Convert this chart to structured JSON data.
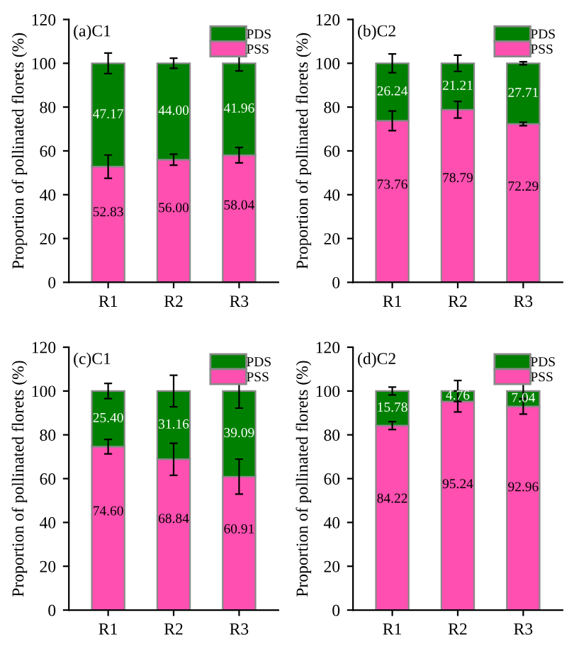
{
  "chart_data": [
    {
      "type": "bar",
      "title": "(a)C1",
      "ylabel": "Proportion of pollinated florets (%)",
      "categories": [
        "R1",
        "R2",
        "R3"
      ],
      "stacked": true,
      "legend": "top right",
      "ylim": [
        0,
        120
      ],
      "yticks": [
        0,
        20,
        40,
        60,
        80,
        100,
        120
      ],
      "series": [
        {
          "name": "PSS",
          "color": "#ff4fb0",
          "values": [
            52.83,
            56.0,
            58.04
          ],
          "value_labels": [
            "52.83",
            "56.00",
            "58.04"
          ],
          "errors": [
            5.3,
            2.5,
            3.5
          ]
        },
        {
          "name": "PDS",
          "color": "#008000",
          "values": [
            47.17,
            44.0,
            41.96
          ],
          "value_labels": [
            "47.17",
            "44.00",
            "41.96"
          ],
          "errors": [
            4.7,
            2.3,
            3.5
          ]
        }
      ]
    },
    {
      "type": "bar",
      "title": "(b)C2",
      "ylabel": "Proportion of pollinated florets (%)",
      "categories": [
        "R1",
        "R2",
        "R3"
      ],
      "stacked": true,
      "legend": "top right",
      "ylim": [
        0,
        120
      ],
      "yticks": [
        0,
        20,
        40,
        60,
        80,
        100,
        120
      ],
      "series": [
        {
          "name": "PSS",
          "color": "#ff4fb0",
          "values": [
            73.76,
            78.79,
            72.29
          ],
          "value_labels": [
            "73.76",
            "78.79",
            "72.29"
          ],
          "errors": [
            4.5,
            3.8,
            0.8
          ]
        },
        {
          "name": "PDS",
          "color": "#008000",
          "values": [
            26.24,
            21.21,
            27.71
          ],
          "value_labels": [
            "26.24",
            "21.21",
            "27.71"
          ],
          "errors": [
            4.3,
            3.7,
            0.7
          ]
        }
      ]
    },
    {
      "type": "bar",
      "title": "(c)C1",
      "ylabel": "Proportion of pollinated florets (%)",
      "categories": [
        "R1",
        "R2",
        "R3"
      ],
      "stacked": true,
      "legend": "top right",
      "ylim": [
        0,
        120
      ],
      "yticks": [
        0,
        20,
        40,
        60,
        80,
        100,
        120
      ],
      "series": [
        {
          "name": "PSS",
          "color": "#ff4fb0",
          "values": [
            74.6,
            68.84,
            60.91
          ],
          "value_labels": [
            "74.60",
            "68.84",
            "60.91"
          ],
          "errors": [
            3.3,
            7.3,
            8.0
          ]
        },
        {
          "name": "PDS",
          "color": "#008000",
          "values": [
            25.4,
            31.16,
            39.09
          ],
          "value_labels": [
            "25.40",
            "31.16",
            "39.09"
          ],
          "errors": [
            3.5,
            7.2,
            7.8
          ]
        }
      ]
    },
    {
      "type": "bar",
      "title": "(d)C2",
      "ylabel": "Proportion of pollinated florets (%)",
      "categories": [
        "R1",
        "R2",
        "R3"
      ],
      "stacked": true,
      "legend": "top right",
      "ylim": [
        0,
        120
      ],
      "yticks": [
        0,
        20,
        40,
        60,
        80,
        100,
        120
      ],
      "series": [
        {
          "name": "PSS",
          "color": "#ff4fb0",
          "values": [
            84.22,
            95.24,
            92.96
          ],
          "value_labels": [
            "84.22",
            "95.24",
            "92.96"
          ],
          "errors": [
            1.8,
            4.8,
            3.5
          ]
        },
        {
          "name": "PDS",
          "color": "#008000",
          "values": [
            15.78,
            4.76,
            7.04
          ],
          "value_labels": [
            "15.78",
            "4.76",
            "7.04"
          ],
          "errors": [
            1.8,
            4.8,
            3.5
          ]
        }
      ]
    }
  ]
}
